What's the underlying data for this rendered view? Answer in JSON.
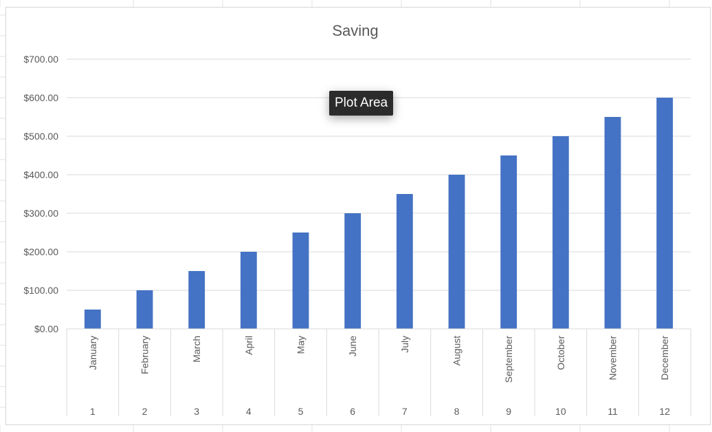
{
  "tooltip": {
    "label": "Plot Area"
  },
  "colors": {
    "bar": "#4472C4",
    "gridline": "#d9d9d9",
    "text": "#595959",
    "sheet_grid": "#e2e2e2"
  },
  "chart_data": {
    "type": "bar",
    "title": "Saving",
    "xlabel": "",
    "ylabel": "",
    "ylim": [
      0,
      700
    ],
    "y_ticks": [
      0,
      100,
      200,
      300,
      400,
      500,
      600,
      700
    ],
    "y_tick_labels": [
      "$0.00",
      "$100.00",
      "$200.00",
      "$300.00",
      "$400.00",
      "$500.00",
      "$600.00",
      "$700.00"
    ],
    "grid": true,
    "legend": "none",
    "categories": [
      "January",
      "February",
      "March",
      "April",
      "May",
      "June",
      "July",
      "August",
      "September",
      "October",
      "November",
      "December"
    ],
    "category_numbers": [
      "1",
      "2",
      "3",
      "4",
      "5",
      "6",
      "7",
      "8",
      "9",
      "10",
      "11",
      "12"
    ],
    "values": [
      50,
      100,
      150,
      200,
      250,
      300,
      350,
      400,
      450,
      500,
      550,
      600
    ]
  }
}
